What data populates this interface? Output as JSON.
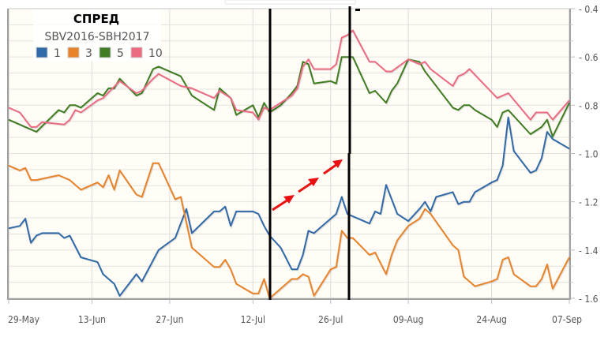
{
  "chart_data": {
    "type": "line",
    "title": "СПРЕД",
    "subtitle": "SBV2016-SBH2017",
    "xlim": [
      "29-May",
      "07-Sep"
    ],
    "xticks": [
      "29-May",
      "13-Jun",
      "27-Jun",
      "12-Jul",
      "26-Jul",
      "09-Aug",
      "24-Aug",
      "07-Sep"
    ],
    "ylim": [
      -1.6,
      -0.4
    ],
    "yticks": [
      "-0.4",
      "-0.6",
      "-0.8",
      "-1.0",
      "-1.2",
      "-1.4",
      "-1.6"
    ],
    "y_axis_side": "right",
    "grid": true,
    "legend_placement": "top-left",
    "series": [
      {
        "name": "1",
        "color": "#2f69a8",
        "points": [
          [
            "29-May",
            -1.31
          ],
          [
            "31-May",
            -1.3
          ],
          [
            "01-Jun",
            -1.27
          ],
          [
            "02-Jun",
            -1.37
          ],
          [
            "03-Jun",
            -1.34
          ],
          [
            "04-Jun",
            -1.33
          ],
          [
            "07-Jun",
            -1.33
          ],
          [
            "08-Jun",
            -1.35
          ],
          [
            "09-Jun",
            -1.34
          ],
          [
            "11-Jun",
            -1.43
          ],
          [
            "14-Jun",
            -1.45
          ],
          [
            "15-Jun",
            -1.5
          ],
          [
            "17-Jun",
            -1.54
          ],
          [
            "18-Jun",
            -1.59
          ],
          [
            "21-Jun",
            -1.5
          ],
          [
            "22-Jun",
            -1.53
          ],
          [
            "25-Jun",
            -1.4
          ],
          [
            "28-Jun",
            -1.35
          ],
          [
            "29-Jun",
            -1.29
          ],
          [
            "30-Jun",
            -1.23
          ],
          [
            "01-Jul",
            -1.33
          ],
          [
            "05-Jul",
            -1.24
          ],
          [
            "06-Jul",
            -1.24
          ],
          [
            "07-Jul",
            -1.22
          ],
          [
            "08-Jul",
            -1.3
          ],
          [
            "09-Jul",
            -1.24
          ],
          [
            "12-Jul",
            -1.24
          ],
          [
            "13-Jul",
            -1.25
          ],
          [
            "14-Jul",
            -1.3
          ],
          [
            "15-Jul",
            -1.34
          ],
          [
            "17-Jul",
            -1.39
          ],
          [
            "19-Jul",
            -1.48
          ],
          [
            "20-Jul",
            -1.48
          ],
          [
            "21-Jul",
            -1.42
          ],
          [
            "22-Jul",
            -1.32
          ],
          [
            "23-Jul",
            -1.33
          ],
          [
            "27-Jul",
            -1.25
          ],
          [
            "28-Jul",
            -1.18
          ],
          [
            "29-Jul",
            -1.25
          ],
          [
            "02-Aug",
            -1.29
          ],
          [
            "03-Aug",
            -1.24
          ],
          [
            "04-Aug",
            -1.25
          ],
          [
            "05-Aug",
            -1.13
          ],
          [
            "07-Aug",
            -1.25
          ],
          [
            "09-Aug",
            -1.28
          ],
          [
            "11-Aug",
            -1.23
          ],
          [
            "12-Aug",
            -1.2
          ],
          [
            "13-Aug",
            -1.24
          ],
          [
            "14-Aug",
            -1.18
          ],
          [
            "17-Aug",
            -1.16
          ],
          [
            "18-Aug",
            -1.21
          ],
          [
            "19-Aug",
            -1.2
          ],
          [
            "20-Aug",
            -1.2
          ],
          [
            "21-Aug",
            -1.16
          ],
          [
            "24-Aug",
            -1.12
          ],
          [
            "25-Aug",
            -1.11
          ],
          [
            "26-Aug",
            -1.05
          ],
          [
            "27-Aug",
            -0.85
          ],
          [
            "28-Aug",
            -0.99
          ],
          [
            "31-Aug",
            -1.08
          ],
          [
            "01-Sep",
            -1.07
          ],
          [
            "02-Sep",
            -1.02
          ],
          [
            "03-Sep",
            -0.91
          ],
          [
            "04-Sep",
            -0.94
          ],
          [
            "07-Sep",
            -0.98
          ]
        ]
      },
      {
        "name": "3",
        "color": "#e8832a",
        "points": [
          [
            "29-May",
            -1.05
          ],
          [
            "31-May",
            -1.07
          ],
          [
            "01-Jun",
            -1.06
          ],
          [
            "02-Jun",
            -1.11
          ],
          [
            "03-Jun",
            -1.11
          ],
          [
            "07-Jun",
            -1.09
          ],
          [
            "09-Jun",
            -1.11
          ],
          [
            "11-Jun",
            -1.15
          ],
          [
            "14-Jun",
            -1.12
          ],
          [
            "15-Jun",
            -1.14
          ],
          [
            "16-Jun",
            -1.09
          ],
          [
            "17-Jun",
            -1.15
          ],
          [
            "18-Jun",
            -1.07
          ],
          [
            "21-Jun",
            -1.17
          ],
          [
            "22-Jun",
            -1.18
          ],
          [
            "24-Jun",
            -1.04
          ],
          [
            "25-Jun",
            -1.04
          ],
          [
            "28-Jun",
            -1.19
          ],
          [
            "29-Jun",
            -1.18
          ],
          [
            "01-Jul",
            -1.39
          ],
          [
            "05-Jul",
            -1.47
          ],
          [
            "06-Jul",
            -1.47
          ],
          [
            "07-Jul",
            -1.44
          ],
          [
            "08-Jul",
            -1.48
          ],
          [
            "09-Jul",
            -1.54
          ],
          [
            "12-Jul",
            -1.58
          ],
          [
            "13-Jul",
            -1.58
          ],
          [
            "14-Jul",
            -1.52
          ],
          [
            "15-Jul",
            -1.6
          ],
          [
            "17-Jul",
            -1.56
          ],
          [
            "19-Jul",
            -1.52
          ],
          [
            "20-Jul",
            -1.52
          ],
          [
            "21-Jul",
            -1.5
          ],
          [
            "22-Jul",
            -1.51
          ],
          [
            "23-Jul",
            -1.59
          ],
          [
            "26-Jul",
            -1.48
          ],
          [
            "27-Jul",
            -1.47
          ],
          [
            "28-Jul",
            -1.32
          ],
          [
            "29-Jul",
            -1.35
          ],
          [
            "30-Jul",
            -1.35
          ],
          [
            "02-Aug",
            -1.42
          ],
          [
            "03-Aug",
            -1.41
          ],
          [
            "05-Aug",
            -1.5
          ],
          [
            "06-Aug",
            -1.42
          ],
          [
            "07-Aug",
            -1.36
          ],
          [
            "09-Aug",
            -1.3
          ],
          [
            "11-Aug",
            -1.27
          ],
          [
            "12-Aug",
            -1.23
          ],
          [
            "13-Aug",
            -1.25
          ],
          [
            "17-Aug",
            -1.38
          ],
          [
            "18-Aug",
            -1.4
          ],
          [
            "19-Aug",
            -1.51
          ],
          [
            "21-Aug",
            -1.55
          ],
          [
            "24-Aug",
            -1.53
          ],
          [
            "25-Aug",
            -1.52
          ],
          [
            "26-Aug",
            -1.44
          ],
          [
            "27-Aug",
            -1.43
          ],
          [
            "28-Aug",
            -1.5
          ],
          [
            "31-Aug",
            -1.55
          ],
          [
            "01-Sep",
            -1.55
          ],
          [
            "02-Sep",
            -1.52
          ],
          [
            "03-Sep",
            -1.46
          ],
          [
            "04-Sep",
            -1.56
          ],
          [
            "07-Sep",
            -1.43
          ]
        ]
      },
      {
        "name": "5",
        "color": "#3f7c22",
        "points": [
          [
            "29-May",
            -0.86
          ],
          [
            "31-May",
            -0.88
          ],
          [
            "01-Jun",
            -0.89
          ],
          [
            "03-Jun",
            -0.91
          ],
          [
            "07-Jun",
            -0.82
          ],
          [
            "08-Jun",
            -0.83
          ],
          [
            "09-Jun",
            -0.8
          ],
          [
            "10-Jun",
            -0.8
          ],
          [
            "11-Jun",
            -0.81
          ],
          [
            "14-Jun",
            -0.75
          ],
          [
            "15-Jun",
            -0.76
          ],
          [
            "16-Jun",
            -0.73
          ],
          [
            "17-Jun",
            -0.73
          ],
          [
            "18-Jun",
            -0.69
          ],
          [
            "21-Jun",
            -0.76
          ],
          [
            "22-Jun",
            -0.75
          ],
          [
            "24-Jun",
            -0.65
          ],
          [
            "25-Jun",
            -0.64
          ],
          [
            "29-Jun",
            -0.68
          ],
          [
            "01-Jul",
            -0.76
          ],
          [
            "05-Jul",
            -0.82
          ],
          [
            "06-Jul",
            -0.73
          ],
          [
            "08-Jul",
            -0.77
          ],
          [
            "09-Jul",
            -0.84
          ],
          [
            "12-Jul",
            -0.8
          ],
          [
            "13-Jul",
            -0.85
          ],
          [
            "14-Jul",
            -0.79
          ],
          [
            "15-Jul",
            -0.83
          ],
          [
            "17-Jul",
            -0.8
          ],
          [
            "19-Jul",
            -0.75
          ],
          [
            "20-Jul",
            -0.72
          ],
          [
            "21-Jul",
            -0.62
          ],
          [
            "22-Jul",
            -0.63
          ],
          [
            "23-Jul",
            -0.71
          ],
          [
            "26-Jul",
            -0.7
          ],
          [
            "27-Jul",
            -0.71
          ],
          [
            "28-Jul",
            -0.6
          ],
          [
            "29-Jul",
            -0.6
          ],
          [
            "30-Jul",
            -0.6
          ],
          [
            "02-Aug",
            -0.75
          ],
          [
            "03-Aug",
            -0.74
          ],
          [
            "05-Aug",
            -0.79
          ],
          [
            "06-Aug",
            -0.74
          ],
          [
            "07-Aug",
            -0.71
          ],
          [
            "09-Aug",
            -0.61
          ],
          [
            "11-Aug",
            -0.62
          ],
          [
            "12-Aug",
            -0.66
          ],
          [
            "13-Aug",
            -0.69
          ],
          [
            "17-Aug",
            -0.81
          ],
          [
            "18-Aug",
            -0.82
          ],
          [
            "19-Aug",
            -0.8
          ],
          [
            "20-Aug",
            -0.8
          ],
          [
            "21-Aug",
            -0.82
          ],
          [
            "24-Aug",
            -0.86
          ],
          [
            "25-Aug",
            -0.89
          ],
          [
            "26-Aug",
            -0.83
          ],
          [
            "27-Aug",
            -0.82
          ],
          [
            "31-Aug",
            -0.92
          ],
          [
            "02-Sep",
            -0.89
          ],
          [
            "03-Sep",
            -0.86
          ],
          [
            "04-Sep",
            -0.93
          ],
          [
            "07-Sep",
            -0.79
          ]
        ]
      },
      {
        "name": "10",
        "color": "#ec6b82",
        "points": [
          [
            "29-May",
            -0.81
          ],
          [
            "31-May",
            -0.83
          ],
          [
            "02-Jun",
            -0.89
          ],
          [
            "03-Jun",
            -0.89
          ],
          [
            "04-Jun",
            -0.87
          ],
          [
            "08-Jun",
            -0.88
          ],
          [
            "09-Jun",
            -0.86
          ],
          [
            "10-Jun",
            -0.82
          ],
          [
            "11-Jun",
            -0.83
          ],
          [
            "14-Jun",
            -0.78
          ],
          [
            "15-Jun",
            -0.77
          ],
          [
            "18-Jun",
            -0.7
          ],
          [
            "21-Jun",
            -0.75
          ],
          [
            "22-Jun",
            -0.74
          ],
          [
            "24-Jun",
            -0.69
          ],
          [
            "25-Jun",
            -0.67
          ],
          [
            "29-Jun",
            -0.72
          ],
          [
            "01-Jul",
            -0.73
          ],
          [
            "05-Jul",
            -0.77
          ],
          [
            "06-Jul",
            -0.74
          ],
          [
            "08-Jul",
            -0.77
          ],
          [
            "09-Jul",
            -0.82
          ],
          [
            "12-Jul",
            -0.83
          ],
          [
            "13-Jul",
            -0.86
          ],
          [
            "14-Jul",
            -0.81
          ],
          [
            "15-Jul",
            -0.82
          ],
          [
            "19-Jul",
            -0.76
          ],
          [
            "20-Jul",
            -0.73
          ],
          [
            "21-Jul",
            -0.64
          ],
          [
            "22-Jul",
            -0.61
          ],
          [
            "23-Jul",
            -0.65
          ],
          [
            "26-Jul",
            -0.65
          ],
          [
            "27-Jul",
            -0.63
          ],
          [
            "28-Jul",
            -0.52
          ],
          [
            "29-Jul",
            -0.51
          ],
          [
            "30-Jul",
            -0.49
          ],
          [
            "02-Aug",
            -0.62
          ],
          [
            "03-Aug",
            -0.62
          ],
          [
            "05-Aug",
            -0.66
          ],
          [
            "06-Aug",
            -0.66
          ],
          [
            "09-Aug",
            -0.61
          ],
          [
            "11-Aug",
            -0.63
          ],
          [
            "12-Aug",
            -0.62
          ],
          [
            "13-Aug",
            -0.65
          ],
          [
            "17-Aug",
            -0.72
          ],
          [
            "18-Aug",
            -0.68
          ],
          [
            "19-Aug",
            -0.67
          ],
          [
            "20-Aug",
            -0.65
          ],
          [
            "25-Aug",
            -0.77
          ],
          [
            "27-Aug",
            -0.75
          ],
          [
            "31-Aug",
            -0.86
          ],
          [
            "01-Sep",
            -0.83
          ],
          [
            "02-Sep",
            -0.83
          ],
          [
            "03-Sep",
            -0.83
          ],
          [
            "04-Sep",
            -0.86
          ],
          [
            "07-Sep",
            -0.78
          ]
        ]
      }
    ],
    "annotations": {
      "vertical_lines_color": "#000000",
      "arrows_color": "#e81010"
    }
  }
}
